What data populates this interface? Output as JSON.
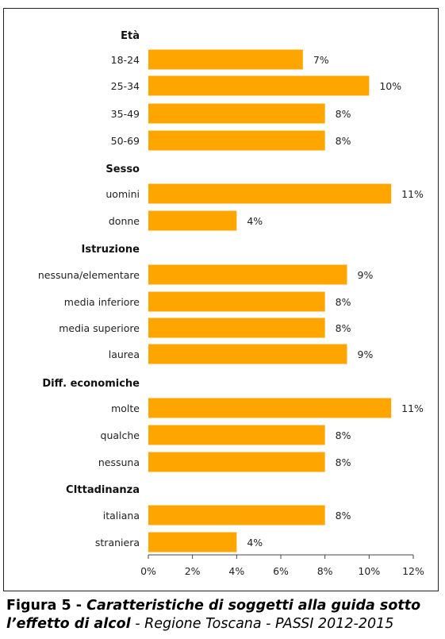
{
  "chart_data": {
    "type": "bar",
    "orientation": "horizontal",
    "groups": [
      {
        "label": "Età",
        "categories": [
          "18-24",
          "25-34",
          "35-49",
          "50-69"
        ],
        "values": [
          7,
          10,
          8,
          8
        ],
        "value_labels": [
          "7%",
          "10%",
          "8%",
          "8%"
        ]
      },
      {
        "label": "Sesso",
        "categories": [
          "uomini",
          "donne"
        ],
        "values": [
          11,
          4
        ],
        "value_labels": [
          "11%",
          "4%"
        ]
      },
      {
        "label": "Istruzione",
        "categories": [
          "nessuna/elementare",
          "media inferiore",
          "media superiore",
          "laurea"
        ],
        "values": [
          9,
          8,
          8,
          9
        ],
        "value_labels": [
          "9%",
          "8%",
          "8%",
          "9%"
        ]
      },
      {
        "label": "Diff. economiche",
        "categories": [
          "molte",
          "qualche",
          "nessuna"
        ],
        "values": [
          11,
          8,
          8
        ],
        "value_labels": [
          "11%",
          "8%",
          "8%"
        ]
      },
      {
        "label": "CIttadinanza",
        "categories": [
          "italiana",
          "straniera"
        ],
        "values": [
          8,
          4
        ],
        "value_labels": [
          "8%",
          "4%"
        ]
      }
    ],
    "xlim": [
      0,
      12
    ],
    "x_ticks": [
      0,
      2,
      4,
      6,
      8,
      10,
      12
    ],
    "x_tick_labels": [
      "0%",
      "2%",
      "4%",
      "6%",
      "8%",
      "10%",
      "12%"
    ],
    "grid": false,
    "bar_color": "#FFA500"
  },
  "caption": {
    "figure": "Figura 5",
    "separator": " - ",
    "title": "Caratteristiche di soggetti alla guida sotto l’effetto di alcol",
    "source": " - Regione Toscana - PASSI 2012-2015"
  }
}
